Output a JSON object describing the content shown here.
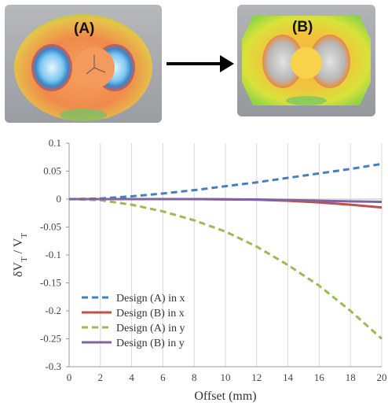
{
  "figure": {
    "panel_a_label": "(A)",
    "panel_b_label": "(B)"
  },
  "chart_data": {
    "type": "line",
    "title": "",
    "xlabel": "Offset (mm)",
    "ylabel": "δV_T / V_T",
    "xlim": [
      0,
      20
    ],
    "ylim": [
      -0.3,
      0.1
    ],
    "xticks": [
      0,
      2,
      4,
      6,
      8,
      10,
      12,
      14,
      16,
      18,
      20
    ],
    "yticks": [
      0.1,
      0.05,
      0,
      -0.05,
      -0.1,
      -0.15,
      -0.2,
      -0.25,
      -0.3
    ],
    "ytick_labels": [
      "0.1",
      "0.05",
      "0",
      "-0.05",
      "-0.1",
      "-0.15",
      "-0.2",
      "-0.25",
      "-0.3"
    ],
    "grid": "vertical",
    "legend_position": "bottom-left",
    "x": [
      0,
      2,
      4,
      6,
      8,
      10,
      12,
      14,
      16,
      18,
      20
    ],
    "series": [
      {
        "name": "Design (A) in x",
        "color": "#4a7ebb",
        "dash": "dashed",
        "values": [
          0,
          0.001,
          0.005,
          0.01,
          0.016,
          0.023,
          0.03,
          0.038,
          0.046,
          0.054,
          0.063
        ]
      },
      {
        "name": "Design (B) in x",
        "color": "#c0504d",
        "dash": "solid",
        "values": [
          0,
          0,
          0,
          0,
          0,
          -0.0005,
          -0.001,
          -0.003,
          -0.006,
          -0.01,
          -0.015
        ]
      },
      {
        "name": "Design (A) in y",
        "color": "#9bbb59",
        "dash": "dashed",
        "values": [
          0,
          -0.002,
          -0.01,
          -0.022,
          -0.038,
          -0.058,
          -0.085,
          -0.118,
          -0.155,
          -0.2,
          -0.25
        ]
      },
      {
        "name": "Design (B) in y",
        "color": "#8064a2",
        "dash": "solid",
        "values": [
          0,
          0,
          0,
          0,
          0,
          -0.0003,
          -0.0007,
          -0.0015,
          -0.003,
          -0.004,
          -0.005
        ]
      }
    ]
  }
}
